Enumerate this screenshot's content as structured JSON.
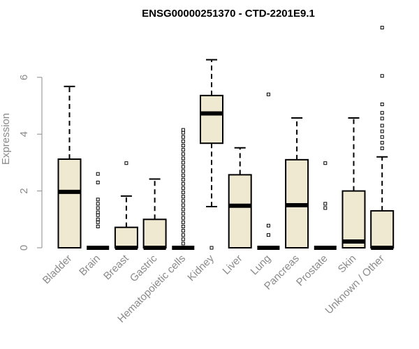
{
  "chart_data": {
    "type": "boxplot",
    "title": "ENSG00000251370 - CTD-2201E9.1",
    "ylabel": "Expression",
    "ylim": [
      0,
      7.8
    ],
    "yticks": [
      "0",
      "2",
      "4",
      "6"
    ],
    "box_fill": "#efe9d2",
    "categories": [
      "Bladder",
      "Brain",
      "Breast",
      "Gastric",
      "Hematopoietic cells",
      "Kidney",
      "Liver",
      "Lung",
      "Pancreas",
      "Prostate",
      "Skin",
      "Unknown / Other"
    ],
    "boxes": [
      {
        "q1": 0,
        "median": 1.97,
        "q3": 3.12,
        "whisker_low": 0,
        "whisker_high": 5.68,
        "outliers": []
      },
      {
        "q1": 0,
        "median": 0,
        "q3": 0,
        "whisker_low": 0,
        "whisker_high": 0,
        "outliers": [
          0.75,
          0.9,
          1.0,
          1.15,
          1.25,
          1.4,
          1.55,
          1.7,
          2.3,
          2.6
        ]
      },
      {
        "q1": 0,
        "median": 0,
        "q3": 0.72,
        "whisker_low": 0,
        "whisker_high": 1.82,
        "outliers": [
          2.98
        ]
      },
      {
        "q1": 0,
        "median": 0,
        "q3": 1.0,
        "whisker_low": 0,
        "whisker_high": 2.42,
        "outliers": []
      },
      {
        "q1": 0,
        "median": 0,
        "q3": 0,
        "whisker_low": 0,
        "whisker_high": 0,
        "outliers": [
          0.15,
          0.3,
          0.45,
          0.6,
          0.75,
          0.9,
          1.05,
          1.2,
          1.35,
          1.5,
          1.65,
          1.8,
          1.95,
          2.1,
          2.25,
          2.4,
          2.55,
          2.7,
          2.85,
          3.0,
          3.15,
          3.3,
          3.45,
          3.6,
          3.75,
          3.9,
          4.05,
          4.15
        ]
      },
      {
        "q1": 3.68,
        "median": 4.73,
        "q3": 5.36,
        "whisker_low": 1.45,
        "whisker_high": 6.62,
        "outliers": [
          0
        ]
      },
      {
        "q1": 0,
        "median": 1.48,
        "q3": 2.57,
        "whisker_low": 0,
        "whisker_high": 3.52,
        "outliers": []
      },
      {
        "q1": 0,
        "median": 0,
        "q3": 0,
        "whisker_low": 0,
        "whisker_high": 0,
        "outliers": [
          0.45,
          0.78,
          5.4
        ]
      },
      {
        "q1": 0,
        "median": 1.5,
        "q3": 3.1,
        "whisker_low": 0,
        "whisker_high": 4.57,
        "outliers": []
      },
      {
        "q1": 0,
        "median": 0,
        "q3": 0,
        "whisker_low": 0,
        "whisker_high": 0,
        "outliers": [
          1.4,
          1.55,
          2.98
        ]
      },
      {
        "q1": 0,
        "median": 0.22,
        "q3": 2.0,
        "whisker_low": 0,
        "whisker_high": 4.57,
        "outliers": []
      },
      {
        "q1": 0,
        "median": 0,
        "q3": 1.3,
        "whisker_low": 0,
        "whisker_high": 3.2,
        "outliers": [
          3.5,
          3.7,
          3.9,
          4.1,
          4.3,
          4.55,
          4.75,
          5.05,
          6.05,
          7.75
        ]
      }
    ],
    "grid": false,
    "legend": "none"
  }
}
